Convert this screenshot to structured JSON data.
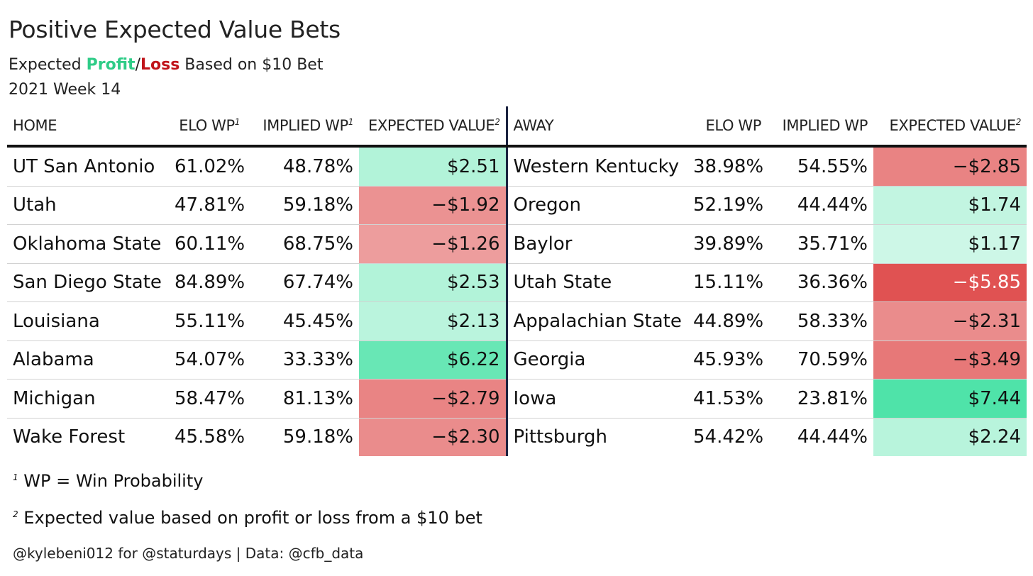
{
  "header": {
    "title": "Positive Expected Value Bets",
    "subtitle_prefix": "Expected ",
    "subtitle_profit": "Profit",
    "subtitle_sep": "/",
    "subtitle_loss": "Loss",
    "subtitle_suffix": " Based on $10 Bet",
    "week": "2021 Week 14",
    "profit_color": "#2ecc87",
    "loss_color": "#c0141a"
  },
  "columns": {
    "home": "HOME",
    "home_elo": "ELO WP",
    "home_implied": "IMPLIED WP",
    "home_ev": "EXPECTED VALUE",
    "away": "AWAY",
    "away_elo": "ELO WP",
    "away_implied": "IMPLIED WP",
    "away_ev": "EXPECTED VALUE",
    "sup1": "1",
    "sup2": "2"
  },
  "chart_data": {
    "type": "table",
    "rows": [
      {
        "home": "UT San Antonio",
        "home_elo": "61.02%",
        "home_implied": "48.78%",
        "home_ev": "$2.51",
        "home_ev_value": 2.51,
        "away": "Western Kentucky",
        "away_elo": "38.98%",
        "away_implied": "54.55%",
        "away_ev": "−$2.85",
        "away_ev_value": -2.85
      },
      {
        "home": "Utah",
        "home_elo": "47.81%",
        "home_implied": "59.18%",
        "home_ev": "−$1.92",
        "home_ev_value": -1.92,
        "away": "Oregon",
        "away_elo": "52.19%",
        "away_implied": "44.44%",
        "away_ev": "$1.74",
        "away_ev_value": 1.74
      },
      {
        "home": "Oklahoma State",
        "home_elo": "60.11%",
        "home_implied": "68.75%",
        "home_ev": "−$1.26",
        "home_ev_value": -1.26,
        "away": "Baylor",
        "away_elo": "39.89%",
        "away_implied": "35.71%",
        "away_ev": "$1.17",
        "away_ev_value": 1.17
      },
      {
        "home": "San Diego State",
        "home_elo": "84.89%",
        "home_implied": "67.74%",
        "home_ev": "$2.53",
        "home_ev_value": 2.53,
        "away": "Utah State",
        "away_elo": "15.11%",
        "away_implied": "36.36%",
        "away_ev": "−$5.85",
        "away_ev_value": -5.85
      },
      {
        "home": "Louisiana",
        "home_elo": "55.11%",
        "home_implied": "45.45%",
        "home_ev": "$2.13",
        "home_ev_value": 2.13,
        "away": "Appalachian State",
        "away_elo": "44.89%",
        "away_implied": "58.33%",
        "away_ev": "−$2.31",
        "away_ev_value": -2.31
      },
      {
        "home": "Alabama",
        "home_elo": "54.07%",
        "home_implied": "33.33%",
        "home_ev": "$6.22",
        "home_ev_value": 6.22,
        "away": "Georgia",
        "away_elo": "45.93%",
        "away_implied": "70.59%",
        "away_ev": "−$3.49",
        "away_ev_value": -3.49
      },
      {
        "home": "Michigan",
        "home_elo": "58.47%",
        "home_implied": "81.13%",
        "home_ev": "−$2.79",
        "home_ev_value": -2.79,
        "away": "Iowa",
        "away_elo": "41.53%",
        "away_implied": "23.81%",
        "away_ev": "$7.44",
        "away_ev_value": 7.44
      },
      {
        "home": "Wake Forest",
        "home_elo": "45.58%",
        "home_implied": "59.18%",
        "home_ev": "−$2.30",
        "home_ev_value": -2.3,
        "away": "Pittsburgh",
        "away_elo": "54.42%",
        "away_implied": "44.44%",
        "away_ev": "$2.24",
        "away_ev_value": 2.24
      }
    ],
    "color_scale": {
      "low": "#e05252",
      "mid": "#ffffff",
      "high": "#4fe3a9"
    }
  },
  "footnotes": {
    "fn1_mark": "1",
    "fn1_text": "WP = Win Probability",
    "fn2_mark": "2",
    "fn2_text": "Expected value based on profit or loss from a $10 bet",
    "credit": "@kylebeni012 for @staturdays | Data: @cfb_data"
  }
}
